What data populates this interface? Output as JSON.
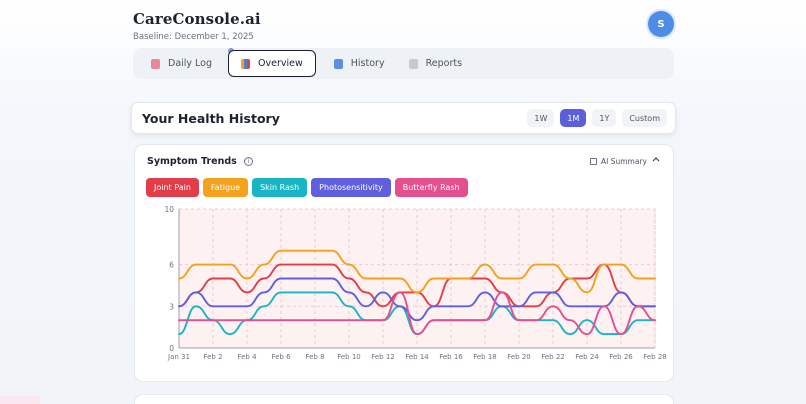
{
  "app": {
    "brand": "CareConsole.ai",
    "baseline": "Baseline: December 1, 2025",
    "avatar": "S"
  },
  "tabs": [
    {
      "label": "Daily Log",
      "icon": "clipboard-icon",
      "color": "#e07a8a"
    },
    {
      "label": "Overview",
      "icon": "chart-icon",
      "color": "#4d7fd6"
    },
    {
      "label": "History",
      "icon": "calendar-icon",
      "color": "#5b8fe0"
    },
    {
      "label": "Reports",
      "icon": "document-icon",
      "color": "#b9bec8"
    }
  ],
  "history": {
    "title": "Your Health History",
    "ranges": [
      "1W",
      "1M",
      "1Y",
      "Custom"
    ],
    "active_range": "1M"
  },
  "symptoms": {
    "title": "Symptom Trends",
    "ai_summary": "AI Summary",
    "chips": [
      {
        "label": "Joint Pain",
        "color": "#e23d48"
      },
      {
        "label": "Fatigue",
        "color": "#f2a21c"
      },
      {
        "label": "Skin Rash",
        "color": "#19b5c4"
      },
      {
        "label": "Photosensitivity",
        "color": "#5f5fe0"
      },
      {
        "label": "Butterfly Rash",
        "color": "#e64f8e"
      }
    ]
  },
  "chart_data": {
    "type": "line",
    "x": [
      "Jan 31",
      "Feb 1",
      "Feb 2",
      "Feb 3",
      "Feb 4",
      "Feb 5",
      "Feb 6",
      "Feb 7",
      "Feb 8",
      "Feb 9",
      "Feb 10",
      "Feb 11",
      "Feb 12",
      "Feb 13",
      "Feb 14",
      "Feb 15",
      "Feb 16",
      "Feb 17",
      "Feb 18",
      "Feb 19",
      "Feb 20",
      "Feb 21",
      "Feb 22",
      "Feb 23",
      "Feb 24",
      "Feb 25",
      "Feb 26",
      "Feb 27",
      "Feb 28"
    ],
    "xticks": [
      "Jan 31",
      "Feb 2",
      "Feb 4",
      "Feb 6",
      "Feb 8",
      "Feb 10",
      "Feb 12",
      "Feb 14",
      "Feb 16",
      "Feb 18",
      "Feb 20",
      "Feb 22",
      "Feb 24",
      "Feb 26",
      "Feb 28"
    ],
    "yticks": [
      0,
      3,
      6,
      10
    ],
    "ylim": [
      0,
      10
    ],
    "grid": true,
    "series": [
      {
        "name": "Joint Pain",
        "color": "#e23d48",
        "values": [
          3,
          4,
          5,
          5,
          4,
          5,
          6,
          6,
          6,
          6,
          5,
          4,
          3,
          4,
          4,
          3,
          5,
          5,
          5,
          4,
          3,
          3,
          4,
          5,
          5,
          6,
          4,
          3,
          3
        ]
      },
      {
        "name": "Fatigue",
        "color": "#f2a21c",
        "values": [
          5,
          6,
          6,
          6,
          5,
          6,
          7,
          7,
          7,
          7,
          6,
          5,
          5,
          5,
          4,
          5,
          5,
          5,
          6,
          5,
          5,
          6,
          6,
          5,
          4,
          6,
          6,
          5,
          5
        ]
      },
      {
        "name": "Skin Rash",
        "color": "#19b5c4",
        "values": [
          1,
          3,
          2,
          1,
          2,
          3,
          4,
          4,
          4,
          4,
          3,
          2,
          2,
          3,
          1,
          2,
          2,
          2,
          2,
          3,
          2,
          2,
          2,
          1,
          2,
          1,
          1,
          2,
          2
        ]
      },
      {
        "name": "Photosensitivity",
        "color": "#5f5fe0",
        "values": [
          3,
          4,
          3,
          3,
          3,
          4,
          5,
          5,
          5,
          5,
          4,
          3,
          4,
          3,
          2,
          3,
          3,
          3,
          4,
          3,
          3,
          4,
          4,
          3,
          3,
          3,
          4,
          3,
          3
        ]
      },
      {
        "name": "Butterfly Rash",
        "color": "#e64f8e",
        "values": [
          2,
          2,
          2,
          2,
          2,
          2,
          2,
          2,
          2,
          2,
          2,
          2,
          2,
          4,
          1,
          2,
          2,
          2,
          2,
          4,
          2,
          2,
          3,
          2,
          1,
          3,
          1,
          3,
          2
        ]
      }
    ]
  }
}
